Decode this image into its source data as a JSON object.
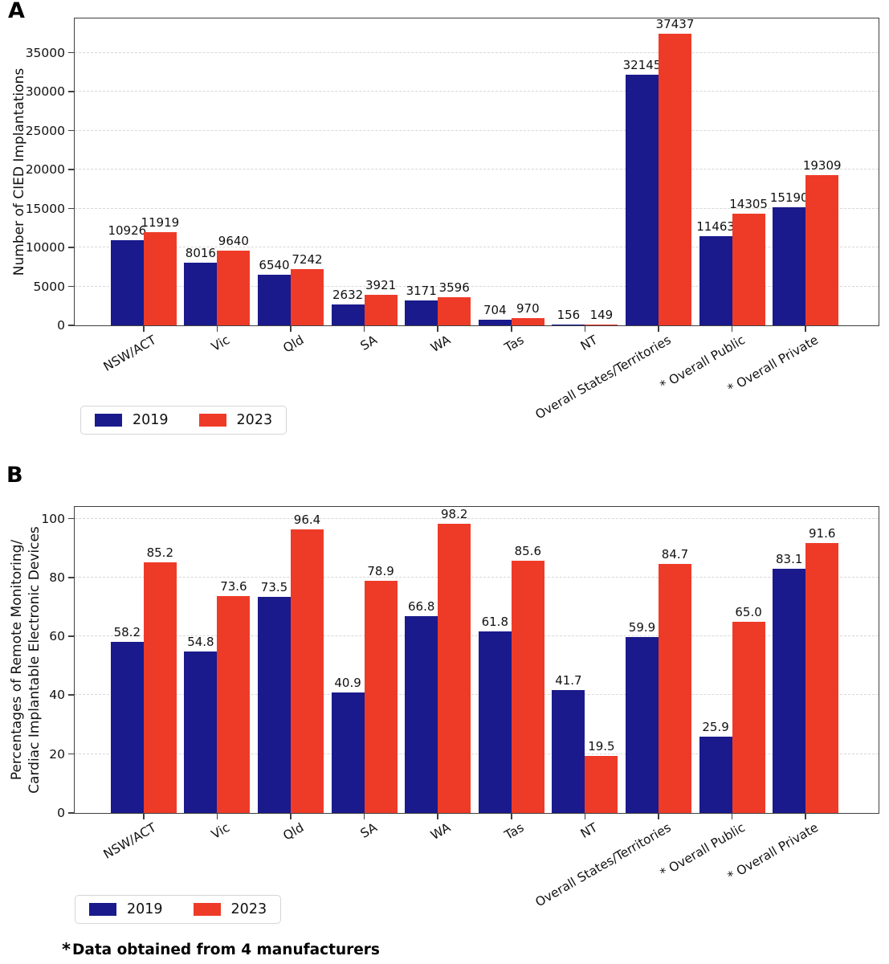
{
  "figure": {
    "panels": {
      "a": "A",
      "b": "B"
    },
    "footnote": {
      "asterisk": "*",
      "text": "Data obtained from 4 manufacturers"
    },
    "colors": {
      "series_2019": "#1a1a8c",
      "series_2023": "#ee3b28",
      "grid": "#d7d7d7",
      "axis_frame": "#3f3f3f"
    }
  },
  "chart_data": [
    {
      "id": "panel_A",
      "type": "bar",
      "ylabel": "Number of CIED Implantations",
      "categories": [
        "NSW/ACT",
        "Vic",
        "Qld",
        "SA",
        "WA",
        "Tas",
        "NT",
        "Overall States/Territories",
        "* Overall Public",
        "* Overall Private"
      ],
      "series": [
        {
          "name": "2019",
          "color": "#1a1a8c",
          "values": [
            10926,
            8016,
            6540,
            2632,
            3171,
            704,
            156,
            32145,
            11463,
            15190
          ]
        },
        {
          "name": "2023",
          "color": "#ee3b28",
          "values": [
            11919,
            9640,
            7242,
            3921,
            3596,
            970,
            149,
            37437,
            14305,
            19309
          ]
        }
      ],
      "yticks": [
        0,
        5000,
        10000,
        15000,
        20000,
        25000,
        30000,
        35000
      ],
      "ylim": [
        0,
        39400
      ],
      "grid": "horizontal-dashed",
      "legend_position": "below-left",
      "value_decimals": 0
    },
    {
      "id": "panel_B",
      "type": "bar",
      "ylabel_lines": [
        "Percentages of Remote Monitoring/",
        "Cardiac Implantable Electronic Devices"
      ],
      "categories": [
        "NSW/ACT",
        "Vic",
        "Qld",
        "SA",
        "WA",
        "Tas",
        "NT",
        "Overall States/Territories",
        "* Overall Public",
        "* Overall Private"
      ],
      "series": [
        {
          "name": "2019",
          "color": "#1a1a8c",
          "values": [
            58.2,
            54.8,
            73.5,
            40.9,
            66.8,
            61.8,
            41.7,
            59.9,
            25.9,
            83.1
          ]
        },
        {
          "name": "2023",
          "color": "#ee3b28",
          "values": [
            85.2,
            73.6,
            96.4,
            78.9,
            98.2,
            85.6,
            19.5,
            84.7,
            65.0,
            91.6
          ]
        }
      ],
      "yticks": [
        0,
        20,
        40,
        60,
        80,
        100
      ],
      "ylim": [
        0,
        104
      ],
      "grid": "horizontal-dashed",
      "legend_position": "below-left",
      "value_decimals": 1
    }
  ]
}
